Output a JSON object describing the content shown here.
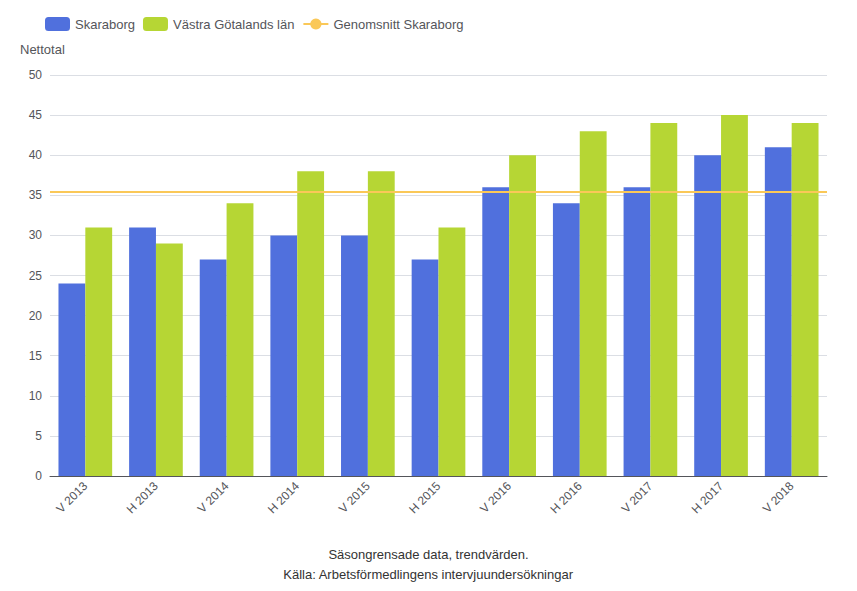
{
  "chart_data": {
    "type": "bar",
    "ylabel": "Nettotal",
    "categories": [
      "V 2013",
      "H 2013",
      "V 2014",
      "H 2014",
      "V 2015",
      "H 2015",
      "V 2016",
      "H 2016",
      "V 2017",
      "H 2017",
      "V 2018"
    ],
    "series": [
      {
        "name": "Skaraborg",
        "type": "bar",
        "values": [
          24,
          31,
          27,
          30,
          30,
          27,
          36,
          34,
          36,
          40,
          41
        ]
      },
      {
        "name": "Västra Götalands län",
        "type": "bar",
        "values": [
          31,
          29,
          34,
          38,
          38,
          31,
          40,
          43,
          44,
          45,
          44
        ]
      },
      {
        "name": "Genomsnitt Skaraborg",
        "type": "hline",
        "value": 35.5
      }
    ],
    "ylim": [
      0,
      50
    ],
    "yticks": [
      0,
      5,
      10,
      15,
      20,
      25,
      30,
      35,
      40,
      45,
      50
    ],
    "grid": true,
    "legend": "upper left",
    "annotations": [
      "Säsongrensade data, trendvärden.",
      "Källa: Arbetsförmedlingens intervjuundersökningar"
    ]
  }
}
